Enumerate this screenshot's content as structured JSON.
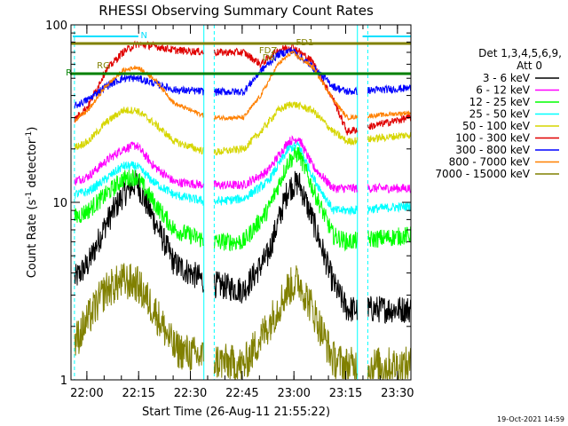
{
  "colors": {
    "background": "#ffffff",
    "axis": "#000000",
    "black": "#000000",
    "magenta": "#ff00ff",
    "cyan": "#00ffff",
    "green": "#00ff00",
    "yellow": "#d6d600",
    "orange": "#ff8000",
    "red": "#e00000",
    "blue": "#0000ff",
    "olive": "#808000",
    "dark_green": "#008000",
    "marker": "#00e0ff"
  },
  "chart_data": {
    "type": "line",
    "title": "RHESSI Observing Summary Count Rates",
    "xlabel": "Start Time (26-Aug-11 21:55:22)",
    "ylabel_main": "Count Rate (s",
    "ylabel_sup": "-1",
    "ylabel_end": " detector",
    "ylabel_close": ")",
    "yscale": "log",
    "ylim": [
      1,
      100
    ],
    "xlim_minutes": [
      0,
      37
    ],
    "x_tick_labels": [
      {
        "t": 4.6,
        "label": "22:00"
      },
      {
        "t": 19.6,
        "label": "22:15"
      },
      {
        "t": 34.6,
        "label": "22:30"
      },
      {
        "t": 49.6,
        "label": "22:45"
      },
      {
        "t": 64.6,
        "label": "23:00"
      },
      {
        "t": 79.6,
        "label": "23:15"
      },
      {
        "t": 94.6,
        "label": "23:30"
      }
    ],
    "y_tick_labels": [
      {
        "v": 1,
        "label": "1"
      },
      {
        "v": 10,
        "label": "10"
      },
      {
        "v": 100,
        "label": "100"
      }
    ],
    "legend_header": [
      "Det 1,3,4,5,6,9,",
      "Att 0"
    ],
    "legend_placement": "right",
    "series": [
      {
        "name": "3 - 6 keV",
        "color": "#000000",
        "points": [
          [
            0,
            3.5
          ],
          [
            5,
            4.5
          ],
          [
            10,
            7.5
          ],
          [
            15,
            11
          ],
          [
            19,
            13
          ],
          [
            24,
            8
          ],
          [
            30,
            4.5
          ],
          [
            40,
            3.5
          ],
          [
            50,
            3.2
          ],
          [
            57,
            5
          ],
          [
            63,
            12
          ],
          [
            66,
            13
          ],
          [
            70,
            8
          ],
          [
            76,
            3.5
          ],
          [
            80,
            2.5
          ],
          [
            98,
            2.5
          ]
        ]
      },
      {
        "name": "6 - 12 keV",
        "color": "#ff00ff",
        "points": [
          [
            0,
            13
          ],
          [
            5,
            14
          ],
          [
            10,
            17
          ],
          [
            15,
            20
          ],
          [
            19,
            21
          ],
          [
            24,
            16
          ],
          [
            30,
            13
          ],
          [
            40,
            12.5
          ],
          [
            50,
            12.5
          ],
          [
            57,
            15
          ],
          [
            63,
            22
          ],
          [
            66,
            23
          ],
          [
            70,
            16
          ],
          [
            76,
            12
          ],
          [
            80,
            12
          ],
          [
            98,
            12
          ]
        ]
      },
      {
        "name": "12 - 25 keV",
        "color": "#00ff00",
        "points": [
          [
            0,
            8
          ],
          [
            5,
            9
          ],
          [
            10,
            11
          ],
          [
            15,
            13.5
          ],
          [
            19,
            14
          ],
          [
            24,
            10
          ],
          [
            30,
            7
          ],
          [
            40,
            6
          ],
          [
            50,
            6
          ],
          [
            57,
            9
          ],
          [
            63,
            17
          ],
          [
            66,
            19
          ],
          [
            70,
            12
          ],
          [
            76,
            6.5
          ],
          [
            80,
            6
          ],
          [
            98,
            6.5
          ]
        ]
      },
      {
        "name": "25 - 50 keV",
        "color": "#00ffff",
        "points": [
          [
            0,
            11
          ],
          [
            5,
            11.5
          ],
          [
            10,
            13.5
          ],
          [
            15,
            16
          ],
          [
            19,
            16
          ],
          [
            24,
            13
          ],
          [
            30,
            11
          ],
          [
            40,
            10
          ],
          [
            50,
            10.5
          ],
          [
            57,
            13
          ],
          [
            63,
            20
          ],
          [
            66,
            21
          ],
          [
            70,
            14
          ],
          [
            76,
            9
          ],
          [
            80,
            9
          ],
          [
            98,
            9.5
          ]
        ]
      },
      {
        "name": "50 - 100 keV",
        "color": "#d6d600",
        "points": [
          [
            0,
            20
          ],
          [
            5,
            22
          ],
          [
            10,
            28
          ],
          [
            15,
            33
          ],
          [
            19,
            33
          ],
          [
            24,
            28
          ],
          [
            30,
            22
          ],
          [
            40,
            19
          ],
          [
            50,
            20
          ],
          [
            55,
            25
          ],
          [
            60,
            33
          ],
          [
            64,
            36
          ],
          [
            70,
            33
          ],
          [
            76,
            25
          ],
          [
            80,
            22
          ],
          [
            98,
            24
          ]
        ]
      },
      {
        "name": "100 - 300 keV",
        "color": "#e00000",
        "points": [
          [
            0,
            28
          ],
          [
            5,
            35
          ],
          [
            10,
            55
          ],
          [
            15,
            70
          ],
          [
            19,
            78
          ],
          [
            24,
            76
          ],
          [
            30,
            72
          ],
          [
            40,
            70
          ],
          [
            50,
            70
          ],
          [
            55,
            60
          ],
          [
            60,
            72
          ],
          [
            64,
            76
          ],
          [
            70,
            62
          ],
          [
            76,
            38
          ],
          [
            80,
            25
          ],
          [
            98,
            30
          ]
        ]
      },
      {
        "name": "300 - 800 keV",
        "color": "#0000ff",
        "points": [
          [
            0,
            34
          ],
          [
            5,
            38
          ],
          [
            10,
            45
          ],
          [
            15,
            50
          ],
          [
            19,
            50
          ],
          [
            24,
            47
          ],
          [
            30,
            43
          ],
          [
            40,
            42
          ],
          [
            50,
            42
          ],
          [
            55,
            55
          ],
          [
            60,
            68
          ],
          [
            64,
            72
          ],
          [
            70,
            58
          ],
          [
            76,
            45
          ],
          [
            80,
            42
          ],
          [
            98,
            44
          ]
        ]
      },
      {
        "name": "800 - 7000 keV",
        "color": "#ff8000",
        "points": [
          [
            0,
            28
          ],
          [
            5,
            33
          ],
          [
            10,
            45
          ],
          [
            15,
            55
          ],
          [
            19,
            58
          ],
          [
            24,
            50
          ],
          [
            30,
            36
          ],
          [
            40,
            30
          ],
          [
            50,
            30
          ],
          [
            55,
            40
          ],
          [
            60,
            60
          ],
          [
            64,
            70
          ],
          [
            70,
            58
          ],
          [
            76,
            38
          ],
          [
            80,
            30
          ],
          [
            98,
            32
          ]
        ]
      },
      {
        "name": "7000 - 15000 keV",
        "color": "#808000",
        "points": [
          [
            0,
            1.5
          ],
          [
            5,
            2.2
          ],
          [
            10,
            3.2
          ],
          [
            15,
            3.6
          ],
          [
            19,
            3.5
          ],
          [
            24,
            2.5
          ],
          [
            30,
            1.5
          ],
          [
            40,
            1.3
          ],
          [
            50,
            1.2
          ],
          [
            57,
            2
          ],
          [
            63,
            3.3
          ],
          [
            66,
            3.6
          ],
          [
            70,
            2.5
          ],
          [
            76,
            1.3
          ],
          [
            80,
            1.2
          ],
          [
            98,
            1.2
          ]
        ]
      }
    ],
    "gaps": [
      {
        "start": -1.5,
        "end": 1.0
      },
      {
        "start": 38.5,
        "end": 41.5
      },
      {
        "start": 83.0,
        "end": 86.0
      }
    ],
    "markers": [
      "N",
      "FD1",
      "FDZ",
      "D6",
      "RG",
      "R"
    ]
  },
  "footer": {
    "timestamp": "19-Oct-2021 14:59"
  }
}
